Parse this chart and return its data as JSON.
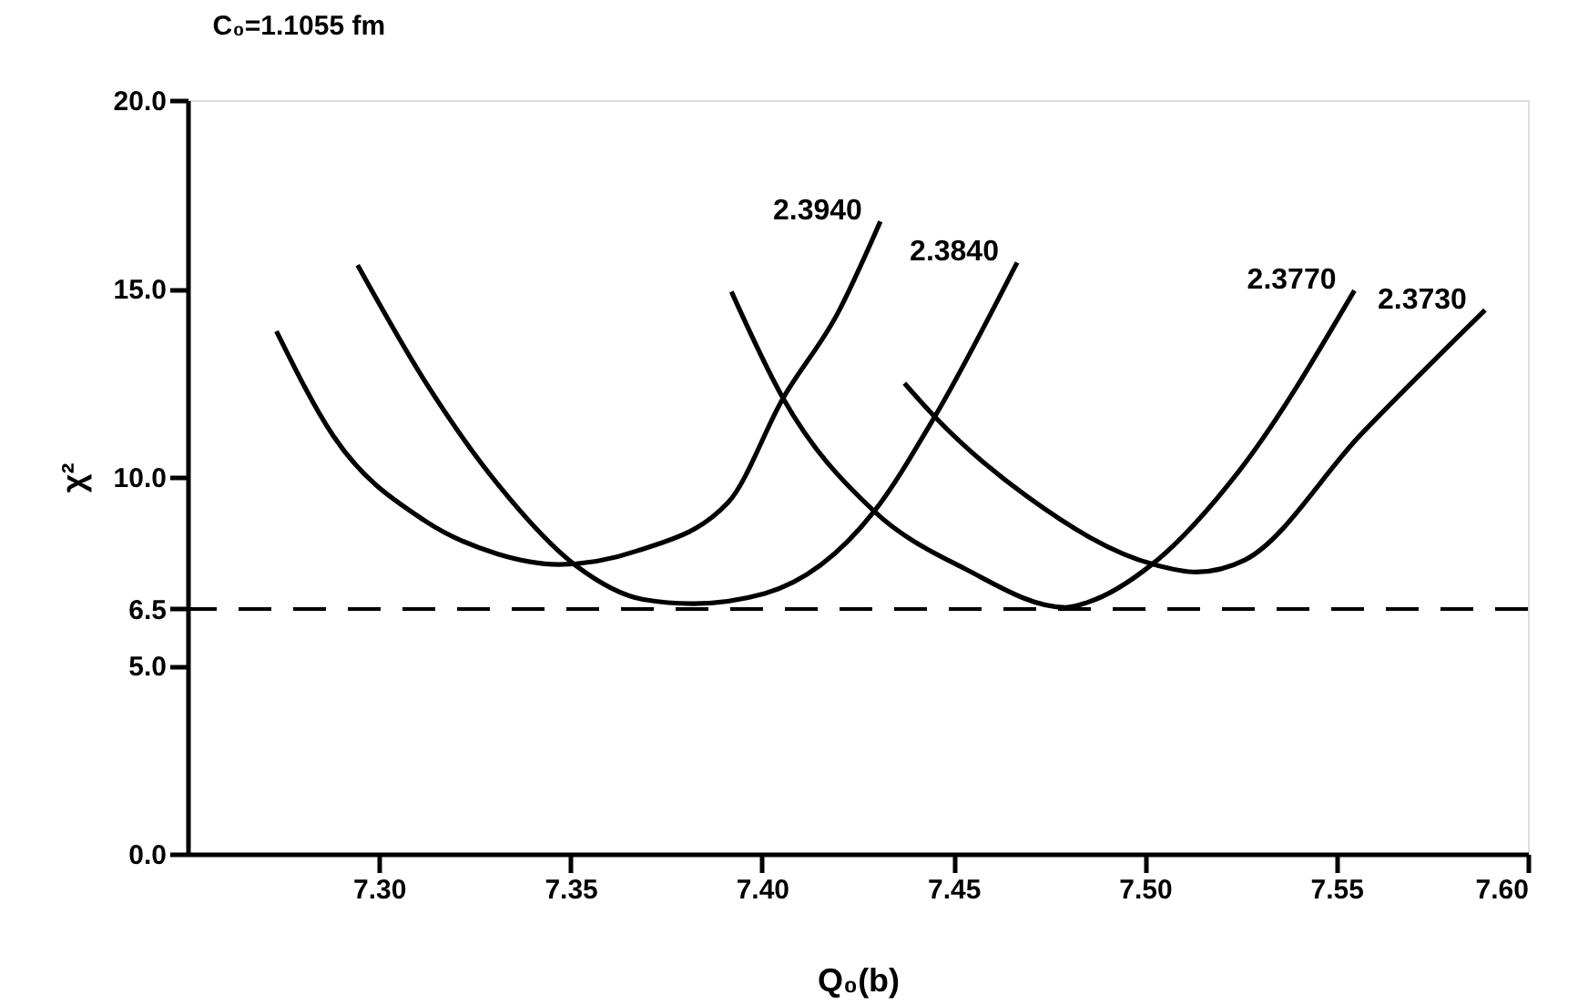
{
  "chart_data": {
    "type": "line",
    "title": "C₀=1.1055 fm",
    "xlabel": "Q₀(b)",
    "ylabel": "χ²",
    "xlim": [
      7.25,
      7.6
    ],
    "xticks": [
      {
        "value": 7.3,
        "label": "7.30"
      },
      {
        "value": 7.35,
        "label": "7.35"
      },
      {
        "value": 7.4,
        "label": "7.40"
      },
      {
        "value": 7.45,
        "label": "7.45"
      },
      {
        "value": 7.5,
        "label": "7.50"
      },
      {
        "value": 7.55,
        "label": "7.55"
      },
      {
        "value": 7.6,
        "label": "7.60"
      }
    ],
    "ylim": [
      0,
      20
    ],
    "yticks": [
      {
        "value": 0,
        "label": "0.0"
      },
      {
        "value": 5,
        "label": "5.0"
      },
      {
        "value": 6.5,
        "label": "6.5"
      },
      {
        "value": 10,
        "label": "10.0"
      },
      {
        "value": 15,
        "label": "15.0"
      },
      {
        "value": 20,
        "label": "20.0"
      }
    ],
    "grid": false,
    "marker": "none",
    "line_style": "solid",
    "series": [
      {
        "name": "2.3940",
        "color": "#000000",
        "x": [
          7.2732,
          7.288,
          7.3118,
          7.3309,
          7.3468,
          7.3674,
          7.3912,
          7.4055,
          7.4198,
          7.4309
        ],
        "values": [
          13.87,
          11.1,
          8.85,
          7.96,
          7.68,
          8.04,
          9.33,
          12.09,
          14.35,
          16.78
        ]
      },
      {
        "name": "2.3840",
        "color": "#000000",
        "x": [
          7.2944,
          7.3118,
          7.3309,
          7.3515,
          7.369,
          7.3817,
          7.4007,
          7.4293,
          7.4451,
          7.4666
        ],
        "values": [
          15.62,
          12.57,
          9.82,
          7.64,
          6.75,
          6.64,
          6.91,
          9.09,
          11.6,
          15.69
        ]
      },
      {
        "name": "2.3770",
        "color": "#000000",
        "x": [
          7.392,
          7.4055,
          7.4293,
          7.4531,
          7.4793,
          7.4849,
          7.5023,
          7.5245,
          7.5547
        ],
        "values": [
          14.92,
          12.09,
          9.09,
          7.56,
          6.54,
          6.67,
          7.72,
          10.15,
          14.95
        ]
      },
      {
        "name": "2.3730",
        "color": "#000000",
        "x": [
          7.4372,
          7.4451,
          7.469,
          7.5023,
          7.5134,
          7.5261,
          7.5563,
          7.5888
        ],
        "values": [
          12.49,
          11.6,
          9.5,
          7.68,
          7.48,
          7.8,
          11.12,
          14.43
        ]
      }
    ],
    "ref_lines": [
      {
        "axis": "y",
        "value": 6.5,
        "line_style": "dashed",
        "color": "#000000"
      }
    ]
  }
}
